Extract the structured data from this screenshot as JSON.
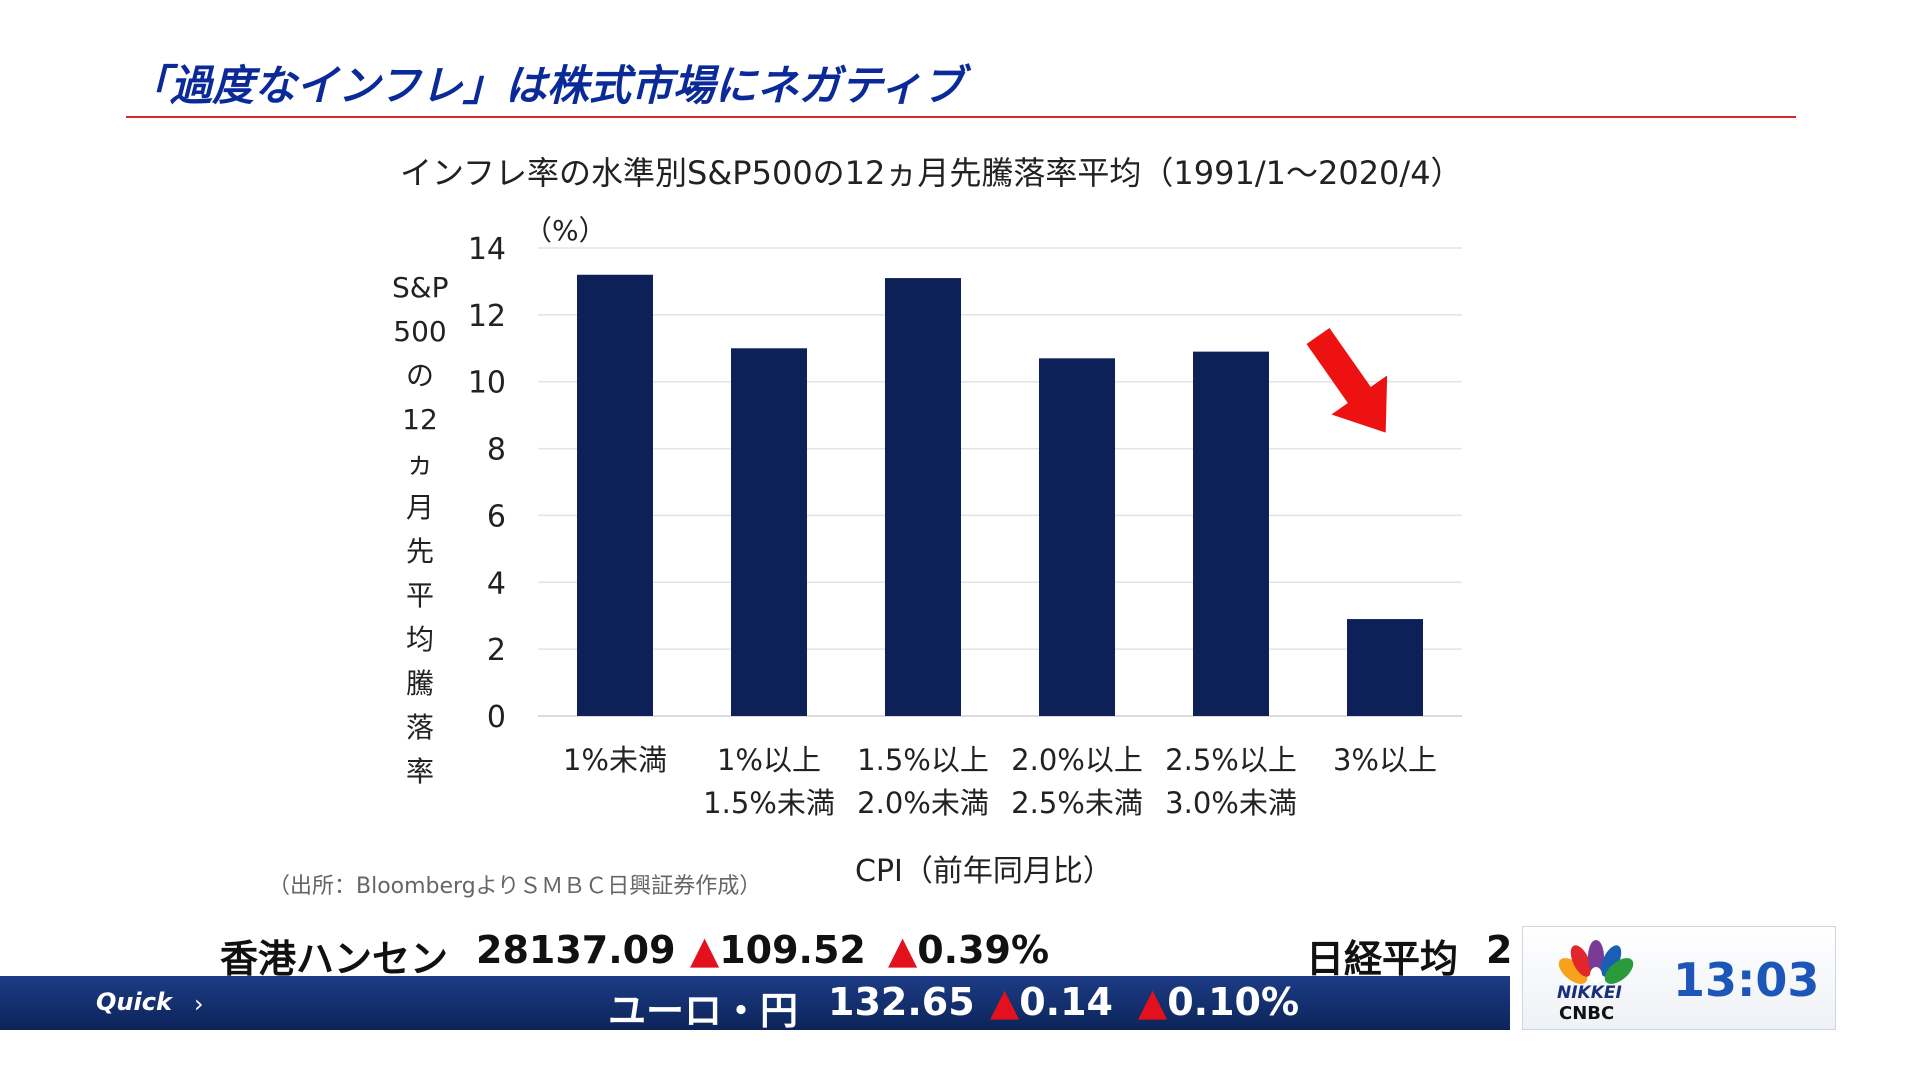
{
  "slide": {
    "title": "「過度なインフレ」は株式市場にネガティブ",
    "chart_title": "インフレ率の水準別S&P500の12ヵ月先騰落率平均（1991/1～2020/4）",
    "source_note": "（出所：BloombergよりＳＭＢＣ日興証券作成）"
  },
  "chart_data": {
    "type": "bar",
    "title": "インフレ率の水準別S&P500の12ヵ月先騰落率平均（1991/1～2020/4）",
    "unit_label": "（%）",
    "ylabel_chars": [
      "S&P",
      "500",
      "の",
      "12",
      "ヵ",
      "月",
      "先",
      "平",
      "均",
      "騰",
      "落",
      "率"
    ],
    "xlabel": "CPI（前年同月比）",
    "categories": [
      [
        "1%未満",
        ""
      ],
      [
        "1%以上",
        "1.5%未満"
      ],
      [
        "1.5%以上",
        "2.0%未満"
      ],
      [
        "2.0%以上",
        "2.5%未満"
      ],
      [
        "2.5%以上",
        "3.0%未満"
      ],
      [
        "3%以上",
        ""
      ]
    ],
    "values": [
      13.2,
      11.0,
      13.1,
      10.7,
      10.9,
      2.9
    ],
    "ylim": [
      0,
      14
    ],
    "yticks": [
      0,
      2,
      4,
      6,
      8,
      10,
      12,
      14
    ],
    "grid": true,
    "bar_color": "#0d2158",
    "annotation": "red-arrow-down"
  },
  "ticker": {
    "row1": [
      {
        "name": "香港ハンセン",
        "value": "28137.09",
        "change": "109.52",
        "pct": "0.39%"
      },
      {
        "name": "日経平均",
        "value": "2"
      }
    ],
    "row2": [
      {
        "name": "ユーロ・円",
        "value": "132.65",
        "change": "0.14",
        "pct": "0.10%"
      }
    ],
    "up_symbol": "▲",
    "quick_label": "Quick",
    "quick_arrow": "›"
  },
  "logo": {
    "line1": "NIKKEI",
    "line2": "CNBC"
  },
  "clock": "13:03",
  "colors": {
    "title": "#0b2a9a",
    "rule": "#d8282a",
    "bars": "#0d2158",
    "arrow": "#ee1111",
    "ticker_bg": "#0c2459",
    "clock": "#1b56b8"
  }
}
